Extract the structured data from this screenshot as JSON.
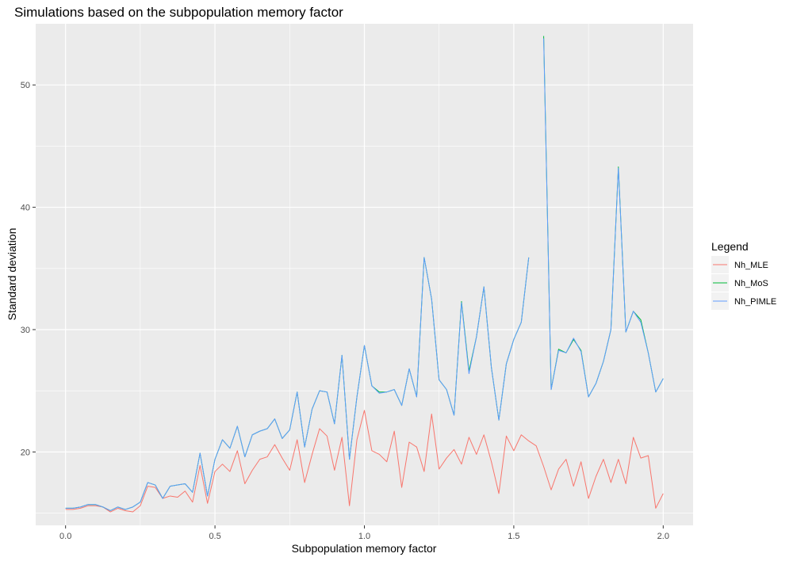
{
  "chart_data": {
    "type": "line",
    "title": "Simulations based on the subpopulation memory factor",
    "xlabel": "Subpopulation memory factor",
    "ylabel": "Standard deviation",
    "xlim": [
      -0.1,
      2.1
    ],
    "ylim": [
      14,
      55
    ],
    "x_ticks": [
      0.0,
      0.5,
      1.0,
      1.5,
      2.0
    ],
    "x_tick_labels": [
      "0.0",
      "0.5",
      "1.0",
      "1.5",
      "2.0"
    ],
    "y_ticks": [
      20,
      30,
      40,
      50
    ],
    "y_tick_labels": [
      "20",
      "30",
      "40",
      "50"
    ],
    "grid": true,
    "panel_background": "#ebebeb",
    "legend": {
      "title": "Legend",
      "position": "right"
    },
    "x": [
      0.0,
      0.025,
      0.05,
      0.075,
      0.1,
      0.125,
      0.15,
      0.175,
      0.2,
      0.225,
      0.25,
      0.275,
      0.3,
      0.325,
      0.35,
      0.375,
      0.4,
      0.425,
      0.45,
      0.475,
      0.5,
      0.525,
      0.55,
      0.575,
      0.6,
      0.625,
      0.65,
      0.675,
      0.7,
      0.725,
      0.75,
      0.775,
      0.8,
      0.825,
      0.85,
      0.875,
      0.9,
      0.925,
      0.95,
      0.975,
      1.0,
      1.025,
      1.05,
      1.075,
      1.1,
      1.125,
      1.15,
      1.175,
      1.2,
      1.225,
      1.25,
      1.275,
      1.3,
      1.325,
      1.35,
      1.375,
      1.4,
      1.425,
      1.45,
      1.475,
      1.5,
      1.525,
      1.55,
      1.575,
      1.6,
      1.625,
      1.65,
      1.675,
      1.7,
      1.725,
      1.75,
      1.775,
      1.8,
      1.825,
      1.85,
      1.875,
      1.9,
      1.925,
      1.95,
      1.975,
      2.0
    ],
    "series": [
      {
        "name": "Nh_MLE",
        "color": "#f8766d",
        "values": [
          15.3,
          15.3,
          15.4,
          15.6,
          15.6,
          15.5,
          15.1,
          15.4,
          15.2,
          15.1,
          15.6,
          17.2,
          17.1,
          16.2,
          16.4,
          16.3,
          16.8,
          15.9,
          18.9,
          15.8,
          18.4,
          19.0,
          18.4,
          20.1,
          17.4,
          18.5,
          19.4,
          19.6,
          20.6,
          19.5,
          18.5,
          21.0,
          17.5,
          19.8,
          21.9,
          21.3,
          18.5,
          21.2,
          15.6,
          21.0,
          23.4,
          20.1,
          19.8,
          19.2,
          21.7,
          17.1,
          20.8,
          20.4,
          18.4,
          23.1,
          18.6,
          19.5,
          20.2,
          19.0,
          21.2,
          19.8,
          21.4,
          19.2,
          16.6,
          21.3,
          20.1,
          21.4,
          20.9,
          20.5,
          18.8,
          16.9,
          18.6,
          19.4,
          17.2,
          19.2,
          16.2,
          18.0,
          19.4,
          17.5,
          19.4,
          17.4,
          21.2,
          19.5,
          19.7,
          15.4,
          16.6
        ]
      },
      {
        "name": "Nh_MoS",
        "color": "#00ba38",
        "values": [
          15.4,
          15.4,
          15.5,
          15.7,
          15.7,
          15.5,
          15.2,
          15.5,
          15.3,
          15.5,
          15.9,
          17.5,
          17.3,
          16.2,
          17.2,
          17.3,
          17.4,
          16.7,
          19.9,
          16.4,
          19.4,
          21.0,
          20.3,
          22.1,
          19.6,
          21.4,
          21.7,
          21.9,
          22.7,
          21.1,
          21.8,
          24.9,
          20.4,
          23.5,
          25.0,
          24.9,
          22.3,
          27.9,
          19.4,
          24.5,
          28.7,
          25.4,
          24.9,
          24.9,
          25.1,
          23.8,
          26.8,
          24.5,
          35.9,
          32.5,
          25.9,
          25.1,
          23.0,
          32.3,
          26.6,
          29.4,
          33.5,
          26.9,
          22.6,
          27.2,
          29.2,
          30.6,
          35.9,
          null,
          54.0,
          25.1,
          28.4,
          28.1,
          29.2,
          28.3,
          24.5,
          25.6,
          27.4,
          30.0,
          43.3,
          29.8,
          31.5,
          30.8,
          28.1,
          24.9,
          26.0
        ]
      },
      {
        "name": "Nh_PIMLE",
        "color": "#619cff",
        "values": [
          15.4,
          15.4,
          15.5,
          15.7,
          15.7,
          15.5,
          15.2,
          15.5,
          15.3,
          15.5,
          15.9,
          17.5,
          17.3,
          16.2,
          17.2,
          17.3,
          17.4,
          16.7,
          19.9,
          16.4,
          19.4,
          21.0,
          20.3,
          22.1,
          19.6,
          21.4,
          21.7,
          21.9,
          22.7,
          21.1,
          21.8,
          24.9,
          20.4,
          23.5,
          25.0,
          24.9,
          22.3,
          27.9,
          19.4,
          24.5,
          28.7,
          25.4,
          24.8,
          24.9,
          25.1,
          23.8,
          26.8,
          24.5,
          35.9,
          32.5,
          25.9,
          25.1,
          23.0,
          32.2,
          26.4,
          29.4,
          33.5,
          26.9,
          22.6,
          27.2,
          29.2,
          30.6,
          35.9,
          null,
          53.8,
          25.1,
          28.3,
          28.1,
          29.3,
          28.2,
          24.5,
          25.6,
          27.4,
          30.0,
          43.2,
          29.8,
          31.5,
          30.6,
          28.1,
          24.9,
          26.0
        ]
      }
    ]
  }
}
